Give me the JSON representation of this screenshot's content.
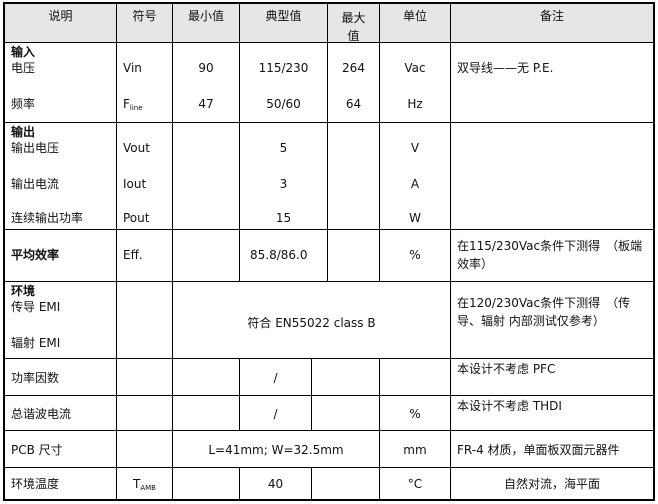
{
  "header": [
    "说明",
    "符号",
    "最小值",
    "典型值",
    "最大值",
    "单位",
    "备注"
  ],
  "input": {
    "title": "输入",
    "rows": [
      {
        "desc": "电压",
        "sym": "Vin",
        "min": "90",
        "typ": "115/230",
        "max": "264",
        "unit": "Vac",
        "note": "双导线——无 P.E."
      },
      {
        "desc": "频率",
        "sym": "F",
        "sym_sub": "line",
        "min": "47",
        "typ": "50/60",
        "max": "64",
        "unit": "Hz",
        "note": ""
      }
    ]
  },
  "output": {
    "title": "输出",
    "rows": [
      {
        "desc": "输出电压",
        "sym": "Vout",
        "typ": "5",
        "unit": "V"
      },
      {
        "desc": "输出电流",
        "sym": "Iout",
        "typ": "3",
        "unit": "A"
      },
      {
        "desc": "连续输出功率",
        "sym": "Pout",
        "typ": "15",
        "unit": "W"
      }
    ]
  },
  "efficiency": {
    "desc": "平均效率",
    "sym": "Eff.",
    "typ": "85.8/86.0",
    "unit": "%",
    "note": "在115/230Vac条件下测得　（板端效率）"
  },
  "environment": {
    "title": "环境",
    "rows": [
      "传导 EMI",
      "辐射 EMI"
    ],
    "value": "符合 EN55022 class B",
    "note": "在120/230Vac条件下测得　（传导、辐射 内部测试仅参考）"
  },
  "pf": {
    "desc": "功率因数",
    "typ": "/",
    "note": "本设计不考虑 PFC"
  },
  "thd": {
    "desc": "总谐波电流",
    "typ": "/",
    "unit": "%",
    "note": "本设计不考虑 THDI"
  },
  "pcb": {
    "desc": "PCB 尺寸",
    "value": "L=41mm; W=32.5mm",
    "unit": "mm",
    "note": "FR-4 材质，单面板双面元器件"
  },
  "temp": {
    "desc": "环境温度",
    "sym": "T",
    "sym_sub": "AMB",
    "typ": "40",
    "unit": "°C",
    "note": "自然对流，海平面"
  }
}
